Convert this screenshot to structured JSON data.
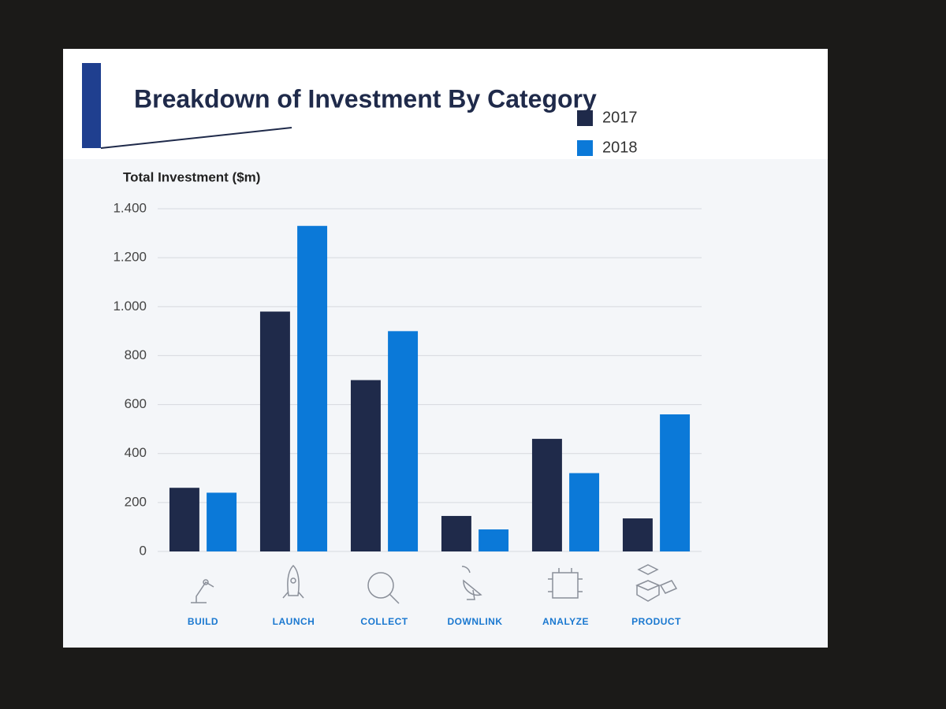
{
  "chart_data": {
    "type": "bar",
    "title": "Breakdown of Investment By Category",
    "y_label": "Total Investment ($m)",
    "categories": [
      "BUILD",
      "LAUNCH",
      "COLLECT",
      "DOWNLINK",
      "ANALYZE",
      "PRODUCT"
    ],
    "series": [
      {
        "name": "2017",
        "color": "#1f2a4a",
        "values": [
          260,
          980,
          700,
          145,
          460,
          135
        ]
      },
      {
        "name": "2018",
        "color": "#0b79d8",
        "values": [
          240,
          1330,
          900,
          90,
          320,
          560
        ]
      }
    ],
    "ylim": [
      0,
      1400
    ],
    "yticks": [
      0,
      200,
      400,
      600,
      800,
      {
        "value": 1000,
        "label": "1.000"
      },
      {
        "value": 1200,
        "label": "1.200"
      },
      {
        "value": 1400,
        "label": "1.400"
      }
    ],
    "grid": true,
    "legend": "top-right"
  }
}
